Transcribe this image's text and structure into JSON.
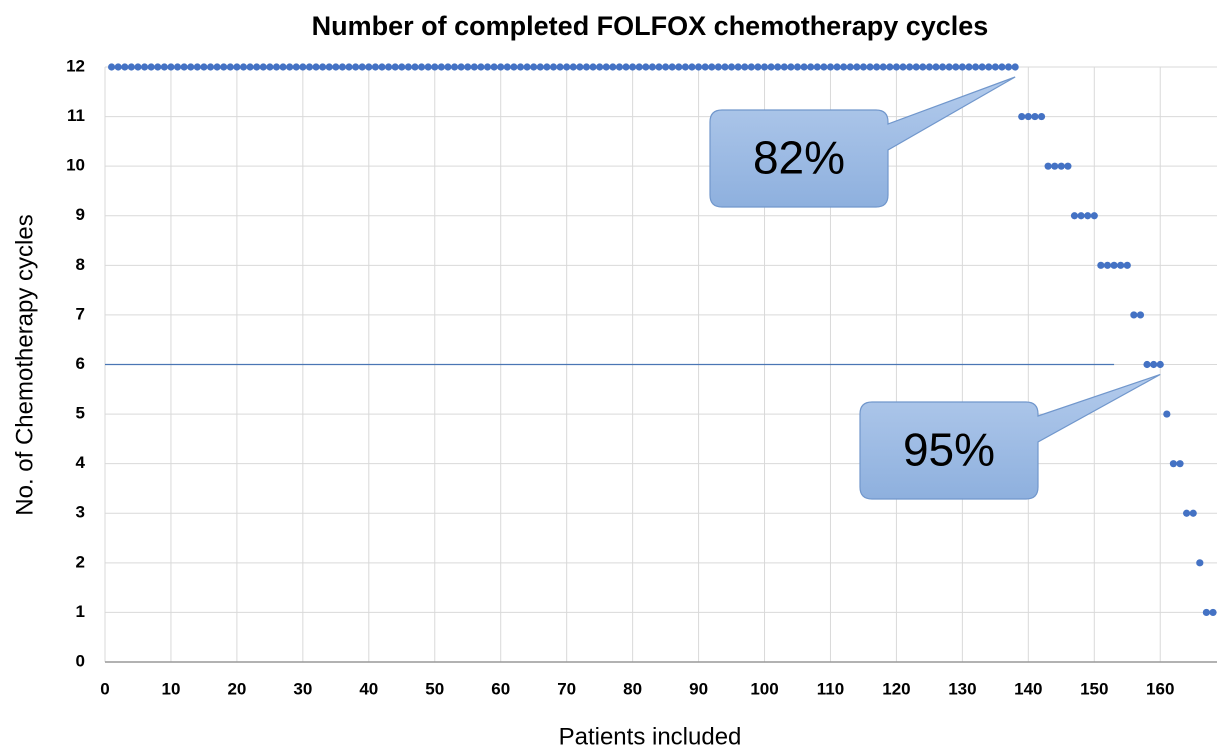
{
  "chart_data": {
    "type": "scatter",
    "title": "Number of completed FOLFOX chemotherapy cycles",
    "xlabel": "Patients included",
    "ylabel": "No. of Chemotherapy cycles",
    "color": "#4472c4",
    "x": [
      1,
      2,
      3,
      4,
      5,
      6,
      7,
      8,
      9,
      10,
      11,
      12,
      13,
      14,
      15,
      16,
      17,
      18,
      19,
      20,
      21,
      22,
      23,
      24,
      25,
      26,
      27,
      28,
      29,
      30,
      31,
      32,
      33,
      34,
      35,
      36,
      37,
      38,
      39,
      40,
      41,
      42,
      43,
      44,
      45,
      46,
      47,
      48,
      49,
      50,
      51,
      52,
      53,
      54,
      55,
      56,
      57,
      58,
      59,
      60,
      61,
      62,
      63,
      64,
      65,
      66,
      67,
      68,
      69,
      70,
      71,
      72,
      73,
      74,
      75,
      76,
      77,
      78,
      79,
      80,
      81,
      82,
      83,
      84,
      85,
      86,
      87,
      88,
      89,
      90,
      91,
      92,
      93,
      94,
      95,
      96,
      97,
      98,
      99,
      100,
      101,
      102,
      103,
      104,
      105,
      106,
      107,
      108,
      109,
      110,
      111,
      112,
      113,
      114,
      115,
      116,
      117,
      118,
      119,
      120,
      121,
      122,
      123,
      124,
      125,
      126,
      127,
      128,
      129,
      130,
      131,
      132,
      133,
      134,
      135,
      136,
      137,
      138,
      139,
      140,
      141,
      142,
      143,
      144,
      145,
      146,
      147,
      148,
      149,
      150,
      151,
      152,
      153,
      154,
      155,
      156,
      157,
      158,
      159,
      160,
      161,
      162,
      163,
      164,
      165,
      166,
      167,
      168
    ],
    "values": [
      12,
      12,
      12,
      12,
      12,
      12,
      12,
      12,
      12,
      12,
      12,
      12,
      12,
      12,
      12,
      12,
      12,
      12,
      12,
      12,
      12,
      12,
      12,
      12,
      12,
      12,
      12,
      12,
      12,
      12,
      12,
      12,
      12,
      12,
      12,
      12,
      12,
      12,
      12,
      12,
      12,
      12,
      12,
      12,
      12,
      12,
      12,
      12,
      12,
      12,
      12,
      12,
      12,
      12,
      12,
      12,
      12,
      12,
      12,
      12,
      12,
      12,
      12,
      12,
      12,
      12,
      12,
      12,
      12,
      12,
      12,
      12,
      12,
      12,
      12,
      12,
      12,
      12,
      12,
      12,
      12,
      12,
      12,
      12,
      12,
      12,
      12,
      12,
      12,
      12,
      12,
      12,
      12,
      12,
      12,
      12,
      12,
      12,
      12,
      12,
      12,
      12,
      12,
      12,
      12,
      12,
      12,
      12,
      12,
      12,
      12,
      12,
      12,
      12,
      12,
      12,
      12,
      12,
      12,
      12,
      12,
      12,
      12,
      12,
      12,
      12,
      12,
      12,
      12,
      12,
      12,
      12,
      12,
      12,
      12,
      12,
      12,
      12,
      11,
      11,
      11,
      11,
      10,
      10,
      10,
      10,
      9,
      9,
      9,
      9,
      8,
      8,
      8,
      8,
      8,
      7,
      7,
      6,
      6,
      6,
      5,
      4,
      4,
      3,
      3,
      2,
      1,
      1
    ],
    "xlim": [
      0,
      168
    ],
    "ylim": [
      0,
      12
    ],
    "xticks": [
      0,
      10,
      20,
      30,
      40,
      50,
      60,
      70,
      80,
      90,
      100,
      110,
      120,
      130,
      140,
      150,
      160
    ],
    "yticks": [
      0,
      1,
      2,
      3,
      4,
      5,
      6,
      7,
      8,
      9,
      10,
      11,
      12
    ],
    "grid": true,
    "hline": {
      "y": 6,
      "x": [
        0,
        153
      ]
    },
    "annotations": [
      {
        "text": "82%",
        "x": 138,
        "y": 12
      },
      {
        "text": "95%",
        "x": 160,
        "y": 6
      }
    ]
  }
}
